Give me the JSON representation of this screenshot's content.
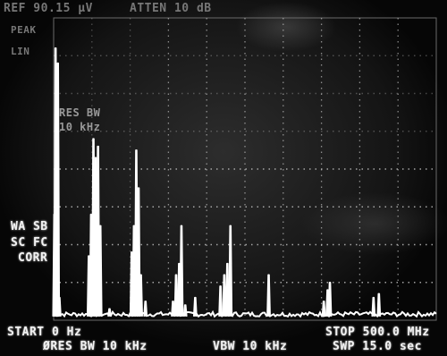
{
  "header": {
    "ref_level": "REF 90.15 μV",
    "attenuation": "ATTEN 10 dB"
  },
  "side_labels": {
    "peak": "PEAK",
    "lin": "LIN",
    "wa_sb": "WA SB",
    "sc_fc": "SC FC",
    "corr": "CORR"
  },
  "overlay": {
    "res_bw_label": "RES BW",
    "res_bw_value": "10 kHz"
  },
  "footer": {
    "start": "START 0 Hz",
    "stop": "STOP 500.0 MHz",
    "res_bw": "ØRES BW 10 kHz",
    "vbw": "VBW 10 kHz",
    "sweep": "SWP 15.0 sec"
  },
  "colors": {
    "trace": "#ffffff",
    "graticule": "#bdbdbd",
    "background": "#1c1c1c"
  },
  "chart_data": {
    "type": "line",
    "xlim": [
      0,
      500
    ],
    "ylim": [
      0,
      8
    ],
    "grid": true,
    "peaks": [
      {
        "x": 1,
        "y": 2.8
      },
      {
        "x": 2.5,
        "y": 7.2
      },
      {
        "x": 4,
        "y": 2.8
      },
      {
        "x": 5.5,
        "y": 6.8
      },
      {
        "x": 7.5,
        "y": 0.6
      },
      {
        "x": 46,
        "y": 1.7
      },
      {
        "x": 49,
        "y": 2.8
      },
      {
        "x": 52,
        "y": 4.8
      },
      {
        "x": 55,
        "y": 4.3
      },
      {
        "x": 58,
        "y": 4.6
      },
      {
        "x": 61,
        "y": 2.5
      },
      {
        "x": 73,
        "y": 0.3
      },
      {
        "x": 102,
        "y": 1.8
      },
      {
        "x": 105,
        "y": 2.5
      },
      {
        "x": 108,
        "y": 4.5
      },
      {
        "x": 111,
        "y": 3.5
      },
      {
        "x": 114,
        "y": 1.2
      },
      {
        "x": 120,
        "y": 0.5
      },
      {
        "x": 156,
        "y": 0.5
      },
      {
        "x": 160,
        "y": 1.2
      },
      {
        "x": 164,
        "y": 1.5
      },
      {
        "x": 167,
        "y": 2.5
      },
      {
        "x": 172,
        "y": 0.4
      },
      {
        "x": 185,
        "y": 0.6
      },
      {
        "x": 218,
        "y": 0.9
      },
      {
        "x": 223,
        "y": 1.2
      },
      {
        "x": 227,
        "y": 1.5
      },
      {
        "x": 231,
        "y": 2.5
      },
      {
        "x": 281,
        "y": 1.2
      },
      {
        "x": 353,
        "y": 0.5
      },
      {
        "x": 358,
        "y": 0.8
      },
      {
        "x": 361,
        "y": 1.0
      },
      {
        "x": 418,
        "y": 0.6
      },
      {
        "x": 425,
        "y": 0.7
      }
    ],
    "noise_floor": 0.1
  }
}
